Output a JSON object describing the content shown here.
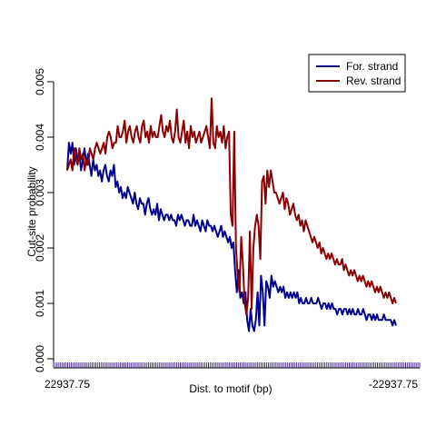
{
  "chart_data": {
    "type": "line",
    "title": "",
    "xlabel": "Dist. to motif (bp)",
    "ylabel": "Cut-site probability",
    "x_tick_labels": [
      "22937.75",
      "-22937.75"
    ],
    "y_tick_labels": [
      "0.000",
      "0.001",
      "0.002",
      "0.003",
      "0.004",
      "0.005"
    ],
    "ylim": [
      0,
      0.005
    ],
    "legend_position": "top-right",
    "grid": false,
    "series": [
      {
        "name": "For. strand",
        "color": "#00008B",
        "values": [
          0.0034,
          0.0039,
          0.0037,
          0.0039,
          0.0035,
          0.0038,
          0.0036,
          0.0037,
          0.0034,
          0.0036,
          0.0038,
          0.0035,
          0.0037,
          0.0035,
          0.0033,
          0.0036,
          0.0034,
          0.0035,
          0.0033,
          0.0034,
          0.0032,
          0.0034,
          0.0035,
          0.0033,
          0.0032,
          0.0034,
          0.0033,
          0.0035,
          0.0031,
          0.0032,
          0.003,
          0.0031,
          0.0029,
          0.003,
          0.0029,
          0.0031,
          0.003,
          0.0029,
          0.0028,
          0.003,
          0.0028,
          0.0027,
          0.0029,
          0.0028,
          0.0028,
          0.0026,
          0.0028,
          0.0029,
          0.0027,
          0.0026,
          0.0027,
          0.0026,
          0.0028,
          0.0025,
          0.0027,
          0.0026,
          0.0025,
          0.0026,
          0.0026,
          0.0025,
          0.0026,
          0.0025,
          0.0025,
          0.0024,
          0.0026,
          0.0025,
          0.0026,
          0.0025,
          0.0024,
          0.0025,
          0.0025,
          0.0024,
          0.0024,
          0.0026,
          0.0024,
          0.0025,
          0.0024,
          0.0023,
          0.0025,
          0.0024,
          0.0023,
          0.0025,
          0.0024,
          0.0024,
          0.0023,
          0.0024,
          0.0023,
          0.0022,
          0.0023,
          0.0024,
          0.0022,
          0.0023,
          0.0022,
          0.0021,
          0.0022,
          0.002,
          0.0021,
          0.0016,
          0.0012,
          0.0016,
          0.0011,
          0.0012,
          0.001,
          0.0012,
          0.0007,
          0.0005,
          0.0009,
          0.0006,
          0.0005,
          0.0007,
          0.0012,
          0.0006,
          0.0015,
          0.0012,
          0.0006,
          0.0014,
          0.0013,
          0.0011,
          0.0015,
          0.0013,
          0.0014,
          0.0013,
          0.0012,
          0.0013,
          0.0012,
          0.0013,
          0.0011,
          0.0012,
          0.0011,
          0.0012,
          0.0011,
          0.0012,
          0.0011,
          0.0012,
          0.001,
          0.0011,
          0.001,
          0.001,
          0.0011,
          0.001,
          0.001,
          0.0011,
          0.001,
          0.001,
          0.001,
          0.0011,
          0.001,
          0.0009,
          0.001,
          0.001,
          0.0009,
          0.001,
          0.0009,
          0.001,
          0.0009,
          0.0009,
          0.0008,
          0.0009,
          0.0009,
          0.0008,
          0.0009,
          0.0009,
          0.0008,
          0.0009,
          0.0008,
          0.0009,
          0.0008,
          0.0008,
          0.0009,
          0.0008,
          0.0008,
          0.0009,
          0.0008,
          0.0007,
          0.0008,
          0.0008,
          0.0007,
          0.0008,
          0.0007,
          0.0008,
          0.0007,
          0.0007,
          0.0007,
          0.0008,
          0.0007,
          0.0007,
          0.0007,
          0.0007,
          0.0006,
          0.0007,
          0.0006
        ]
      },
      {
        "name": "Rev. strand",
        "color": "#8B0000",
        "values": [
          0.0034,
          0.0035,
          0.0036,
          0.0034,
          0.0038,
          0.0036,
          0.0035,
          0.0038,
          0.0036,
          0.0037,
          0.0034,
          0.0036,
          0.0035,
          0.0038,
          0.0037,
          0.0036,
          0.0038,
          0.0039,
          0.0038,
          0.0037,
          0.0038,
          0.0039,
          0.0037,
          0.004,
          0.0041,
          0.004,
          0.0038,
          0.0039,
          0.0039,
          0.0042,
          0.004,
          0.004,
          0.0041,
          0.0043,
          0.0039,
          0.0041,
          0.0042,
          0.004,
          0.0039,
          0.0041,
          0.0042,
          0.004,
          0.0039,
          0.0042,
          0.0043,
          0.004,
          0.0041,
          0.0039,
          0.0042,
          0.004,
          0.0041,
          0.004,
          0.004,
          0.0042,
          0.0044,
          0.0041,
          0.004,
          0.0042,
          0.0041,
          0.0043,
          0.004,
          0.0039,
          0.0041,
          0.0045,
          0.004,
          0.0039,
          0.0041,
          0.0043,
          0.0039,
          0.0041,
          0.0038,
          0.0042,
          0.004,
          0.0041,
          0.0039,
          0.004,
          0.0041,
          0.0039,
          0.004,
          0.0041,
          0.0042,
          0.004,
          0.0038,
          0.0047,
          0.0039,
          0.0038,
          0.0042,
          0.004,
          0.0041,
          0.0039,
          0.0042,
          0.0038,
          0.004,
          0.0041,
          0.0026,
          0.0024,
          0.0041,
          0.002,
          0.0015,
          0.0012,
          0.0022,
          0.0017,
          0.001,
          0.0008,
          0.0011,
          0.0023,
          0.0009,
          0.002,
          0.0024,
          0.0026,
          0.0024,
          0.0018,
          0.0032,
          0.0033,
          0.0028,
          0.0034,
          0.0031,
          0.0034,
          0.0032,
          0.003,
          0.003,
          0.0029,
          0.0028,
          0.0029,
          0.003,
          0.0027,
          0.0029,
          0.0028,
          0.0026,
          0.0027,
          0.0028,
          0.0026,
          0.0025,
          0.0026,
          0.0024,
          0.0025,
          0.0023,
          0.0025,
          0.0024,
          0.0023,
          0.0022,
          0.0021,
          0.0022,
          0.0021,
          0.002,
          0.0021,
          0.0019,
          0.002,
          0.0019,
          0.0018,
          0.0019,
          0.0018,
          0.0019,
          0.0018,
          0.0017,
          0.0018,
          0.0017,
          0.0017,
          0.0018,
          0.0016,
          0.0017,
          0.0016,
          0.0015,
          0.0016,
          0.0015,
          0.0016,
          0.0015,
          0.0014,
          0.0015,
          0.0014,
          0.0015,
          0.0014,
          0.0013,
          0.0014,
          0.0013,
          0.0014,
          0.0013,
          0.0012,
          0.0013,
          0.0012,
          0.0013,
          0.0012,
          0.0011,
          0.0012,
          0.0011,
          0.0012,
          0.0011,
          0.001,
          0.0011,
          0.001
        ]
      }
    ]
  }
}
